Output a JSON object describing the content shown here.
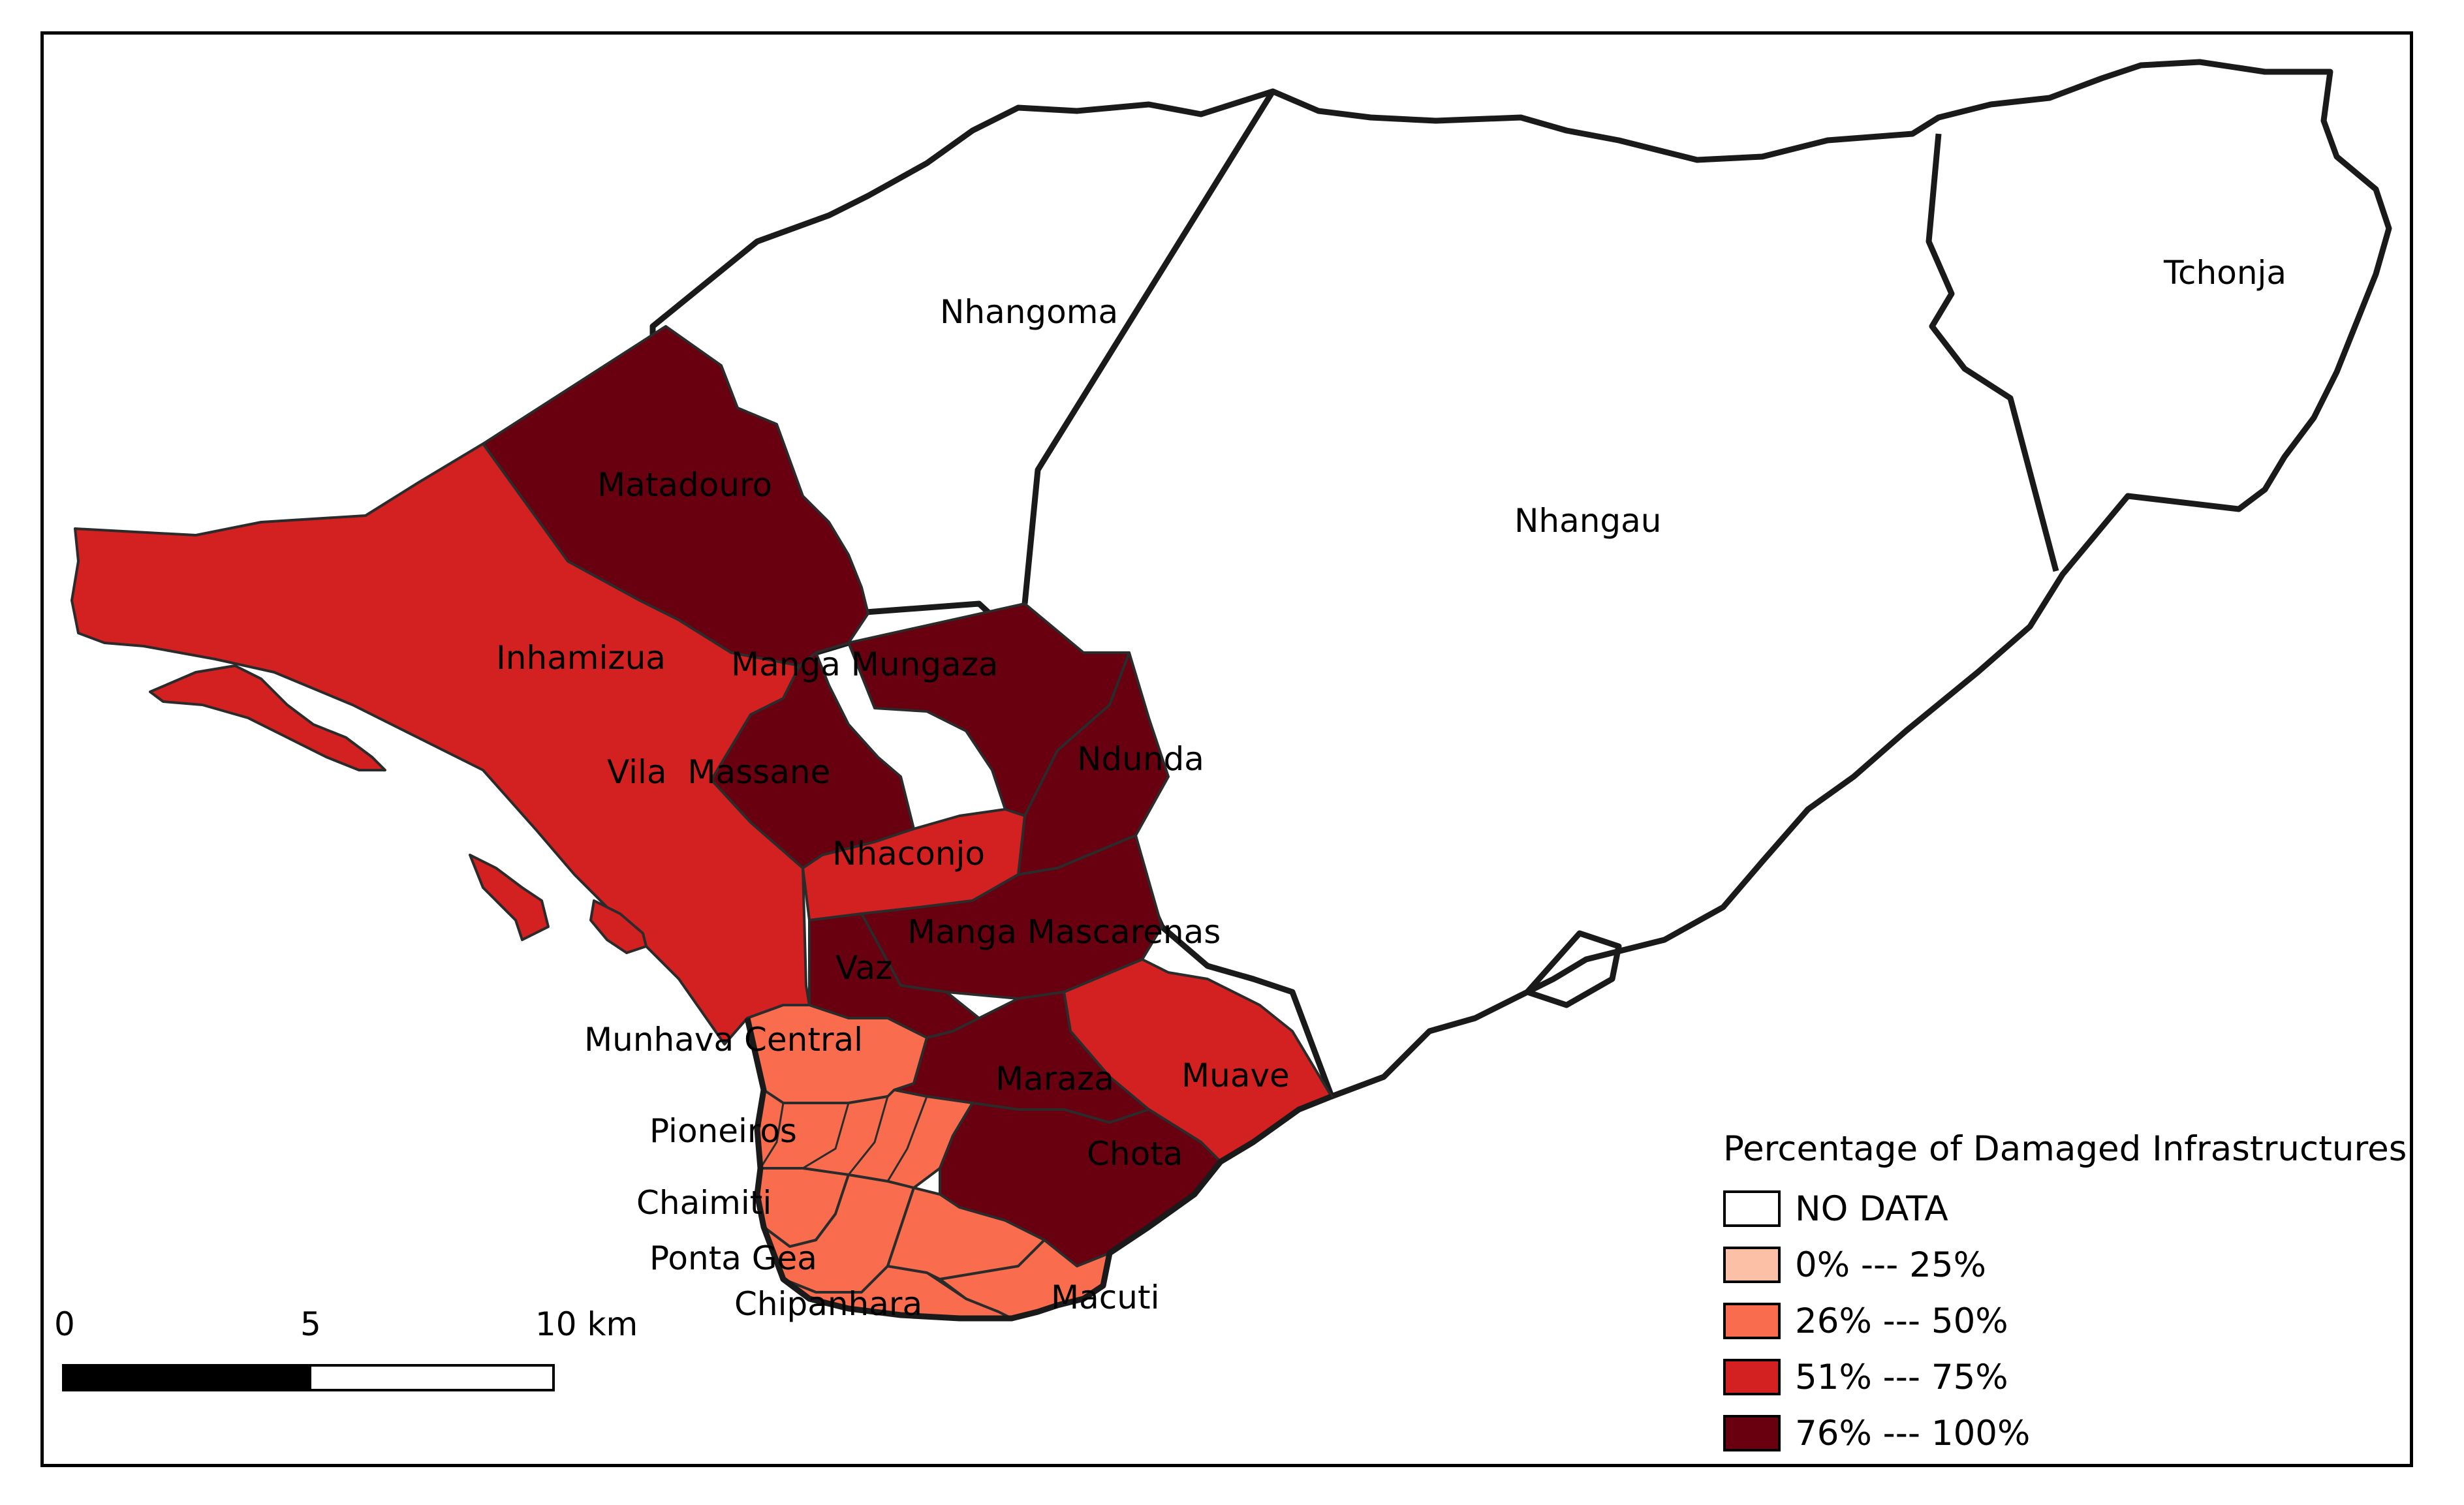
{
  "map": {
    "districts": [
      {
        "name": "Nhangoma",
        "category": "no_data"
      },
      {
        "name": "Nhangau",
        "category": "no_data"
      },
      {
        "name": "Tchonja",
        "category": "no_data"
      },
      {
        "name": "Matadouro",
        "category": "76-100"
      },
      {
        "name": "Inhamizua",
        "category": "51-75"
      },
      {
        "name": "Manga Mungaza",
        "category": "76-100"
      },
      {
        "name": "Ndunda",
        "category": "76-100"
      },
      {
        "name": "Vila Massane",
        "category": "76-100"
      },
      {
        "name": "Nhaconjo",
        "category": "51-75"
      },
      {
        "name": "Manga Mascarenas",
        "category": "76-100"
      },
      {
        "name": "Vaz",
        "category": "76-100"
      },
      {
        "name": "Munhava Central",
        "category": "26-50"
      },
      {
        "name": "Maraza",
        "category": "76-100"
      },
      {
        "name": "Muave",
        "category": "51-75"
      },
      {
        "name": "Chota",
        "category": "76-100"
      },
      {
        "name": "Pioneiros",
        "category": "26-50"
      },
      {
        "name": "Chaimiti",
        "category": "26-50"
      },
      {
        "name": "Ponta Gea",
        "category": "26-50"
      },
      {
        "name": "Chipanhara",
        "category": "26-50"
      },
      {
        "name": "Macuti",
        "category": "26-50"
      }
    ],
    "labels": {
      "nhangoma": "Nhangoma",
      "nhangau": "Nhangau",
      "tchonja": "Tchonja",
      "matadouro": "Matadouro",
      "inhamizua": "Inhamizua",
      "manga_mungaza": "Manga Mungaza",
      "ndunda": "Ndunda",
      "vila_massane": "Vila  Massane",
      "nhaconjo": "Nhaconjo",
      "manga_mascarenas": "Manga Mascarenas",
      "vaz": "Vaz",
      "munhava_central": "Munhava Central",
      "maraza": "Maraza",
      "muave": "Muave",
      "chota": "Chota",
      "pioneiros": "Pioneiros",
      "chaimiti": "Chaimiti",
      "ponta_gea": "Ponta Gea",
      "chipanhara": "Chipanhara",
      "macuti": "Macuti"
    }
  },
  "legend": {
    "title": "Percentage of Damaged Infrastructures",
    "items": [
      {
        "label": "NO DATA",
        "color": "#ffffff"
      },
      {
        "label": "0% --- 25%",
        "color": "#fbc0a6"
      },
      {
        "label": "26% --- 50%",
        "color": "#f96d4e"
      },
      {
        "label": "51% --- 75%",
        "color": "#d32020"
      },
      {
        "label": "76% --- 100%",
        "color": "#680010"
      }
    ]
  },
  "scale_bar": {
    "ticks": [
      "0",
      "5",
      "10 km"
    ]
  },
  "colors": {
    "no_data": "#ffffff",
    "p26_50": "#f96d4e",
    "p51_75": "#d32020",
    "p76_100": "#680010",
    "outline": "#1a1a1a"
  }
}
